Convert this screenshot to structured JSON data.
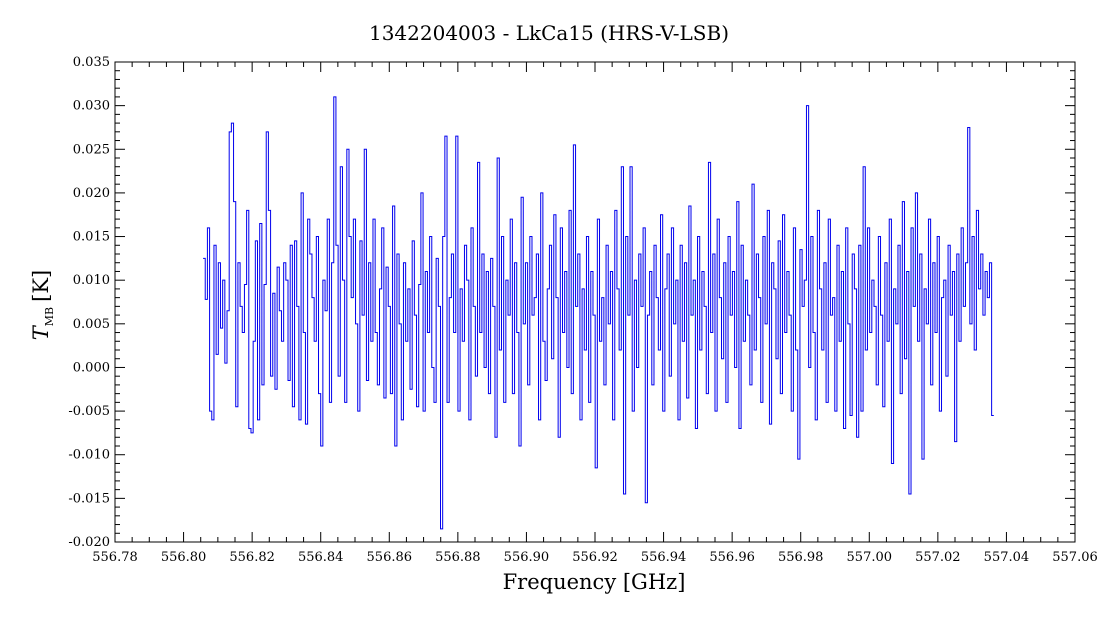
{
  "chart_data": {
    "type": "line",
    "title": "1342204003 - LkCa15 (HRS-V-LSB)",
    "xlabel": "Frequency [GHz]",
    "ylabel": "T",
    "ylabel_subscript": "MB",
    "ylabel_unit": "[K]",
    "xlim": [
      556.78,
      557.06
    ],
    "ylim": [
      -0.02,
      0.035
    ],
    "xticks": [
      556.78,
      556.8,
      556.82,
      556.84,
      556.86,
      556.88,
      556.9,
      556.92,
      556.94,
      556.96,
      556.98,
      557.0,
      557.02,
      557.04,
      557.06
    ],
    "xtick_labels": [
      "556.78",
      "556.80",
      "556.82",
      "556.84",
      "556.86",
      "556.88",
      "556.90",
      "556.92",
      "556.94",
      "556.96",
      "556.98",
      "557.00",
      "557.02",
      "557.04",
      "557.06"
    ],
    "yticks": [
      -0.02,
      -0.015,
      -0.01,
      -0.005,
      0.0,
      0.005,
      0.01,
      0.015,
      0.02,
      0.025,
      0.03,
      0.035
    ],
    "ytick_labels": [
      "-0.020",
      "-0.015",
      "-0.010",
      "-0.005",
      "0.000",
      "0.005",
      "0.010",
      "0.015",
      "0.020",
      "0.025",
      "0.030",
      "0.035"
    ],
    "grid": false,
    "series": [
      {
        "color": "#0000ee",
        "x_start": 556.806,
        "x_end": 557.036,
        "values": [
          0.0125,
          0.0078,
          0.016,
          -0.005,
          -0.006,
          0.014,
          0.0015,
          0.012,
          0.0045,
          0.01,
          0.0005,
          0.0065,
          0.027,
          0.028,
          0.019,
          -0.0045,
          0.012,
          0.007,
          0.004,
          0.0095,
          0.018,
          -0.007,
          -0.0075,
          0.003,
          0.0145,
          -0.006,
          0.0165,
          -0.002,
          0.0095,
          0.027,
          0.018,
          -0.001,
          0.0085,
          -0.0025,
          0.0115,
          0.0065,
          0.003,
          0.012,
          0.01,
          -0.0015,
          0.014,
          -0.0045,
          0.0145,
          0.007,
          -0.006,
          0.02,
          0.004,
          -0.0065,
          0.017,
          0.013,
          0.008,
          0.003,
          0.015,
          -0.003,
          -0.009,
          0.01,
          0.0065,
          0.017,
          -0.004,
          0.012,
          0.031,
          0.014,
          -0.001,
          0.023,
          0.01,
          -0.004,
          0.025,
          0.015,
          0.008,
          0.017,
          0.005,
          -0.005,
          0.0145,
          0.006,
          0.025,
          -0.0015,
          0.012,
          0.003,
          0.017,
          0.004,
          -0.002,
          0.009,
          0.016,
          -0.0035,
          0.0115,
          0.007,
          -0.003,
          0.0185,
          -0.009,
          0.013,
          0.005,
          -0.006,
          0.012,
          0.003,
          0.009,
          -0.0025,
          0.0145,
          0.006,
          -0.0045,
          0.0095,
          0.02,
          -0.005,
          0.011,
          0.004,
          0.015,
          0.0,
          -0.004,
          0.0125,
          0.007,
          -0.0185,
          0.015,
          0.0265,
          -0.004,
          0.008,
          0.013,
          0.004,
          0.0265,
          -0.005,
          0.009,
          0.003,
          0.014,
          0.01,
          -0.006,
          0.016,
          0.007,
          -0.001,
          0.0235,
          0.004,
          0.013,
          0.0,
          0.011,
          -0.003,
          0.0125,
          0.007,
          -0.008,
          0.024,
          0.002,
          0.015,
          -0.004,
          0.01,
          0.006,
          0.017,
          -0.003,
          0.012,
          0.004,
          -0.009,
          0.0195,
          0.005,
          0.012,
          -0.002,
          0.015,
          0.006,
          0.008,
          0.013,
          -0.006,
          0.02,
          0.003,
          -0.0015,
          0.009,
          0.014,
          0.001,
          0.0175,
          0.008,
          -0.008,
          0.016,
          0.004,
          0.011,
          0.0,
          0.018,
          -0.003,
          0.0255,
          0.007,
          0.013,
          -0.006,
          0.009,
          0.002,
          0.015,
          -0.004,
          0.011,
          0.006,
          -0.0115,
          0.017,
          0.003,
          0.008,
          -0.002,
          0.014,
          0.005,
          0.011,
          -0.006,
          0.018,
          0.009,
          0.002,
          0.023,
          -0.0145,
          0.015,
          0.006,
          0.023,
          -0.005,
          0.01,
          0.0,
          0.013,
          0.007,
          0.016,
          -0.0155,
          0.006,
          0.011,
          -0.002,
          0.014,
          0.008,
          0.002,
          0.0175,
          -0.005,
          0.009,
          0.013,
          -0.001,
          0.016,
          0.005,
          0.01,
          -0.006,
          0.014,
          0.003,
          0.012,
          -0.0035,
          0.0185,
          0.006,
          0.01,
          -0.007,
          0.015,
          0.002,
          0.011,
          0.007,
          -0.003,
          0.0235,
          0.004,
          0.013,
          -0.005,
          0.017,
          0.008,
          0.001,
          0.012,
          -0.004,
          0.015,
          0.006,
          0.011,
          0.0,
          0.019,
          -0.007,
          0.014,
          0.003,
          0.01,
          0.006,
          -0.002,
          0.021,
          0.002,
          0.013,
          0.008,
          -0.004,
          0.015,
          0.005,
          0.018,
          -0.0065,
          0.012,
          0.009,
          0.001,
          0.0145,
          -0.003,
          0.0175,
          0.004,
          0.011,
          0.006,
          -0.005,
          0.016,
          0.002,
          -0.0105,
          0.0135,
          0.007,
          0.01,
          0.03,
          0.0,
          0.015,
          0.004,
          -0.006,
          0.018,
          0.009,
          0.002,
          0.012,
          -0.004,
          0.017,
          0.006,
          0.008,
          -0.005,
          0.014,
          0.003,
          0.011,
          -0.007,
          0.016,
          0.005,
          -0.0055,
          0.013,
          0.009,
          -0.008,
          0.014,
          -0.005,
          0.023,
          0.002,
          0.016,
          0.004,
          0.01,
          0.007,
          -0.002,
          0.015,
          0.006,
          -0.0045,
          0.012,
          0.003,
          0.017,
          -0.011,
          0.009,
          0.005,
          0.014,
          -0.003,
          0.019,
          0.001,
          0.011,
          -0.0145,
          0.016,
          0.007,
          0.02,
          0.003,
          0.013,
          -0.0105,
          0.009,
          0.005,
          0.017,
          -0.002,
          0.012,
          0.004,
          0.015,
          -0.005,
          0.008,
          0.01,
          -0.001,
          0.014,
          0.006,
          0.011,
          -0.0085,
          0.013,
          0.003,
          0.016,
          0.007,
          0.012,
          0.0275,
          0.005,
          0.015,
          0.002,
          0.018,
          0.009,
          0.013,
          0.006,
          0.011,
          0.008,
          0.012,
          -0.0055
        ]
      }
    ]
  }
}
